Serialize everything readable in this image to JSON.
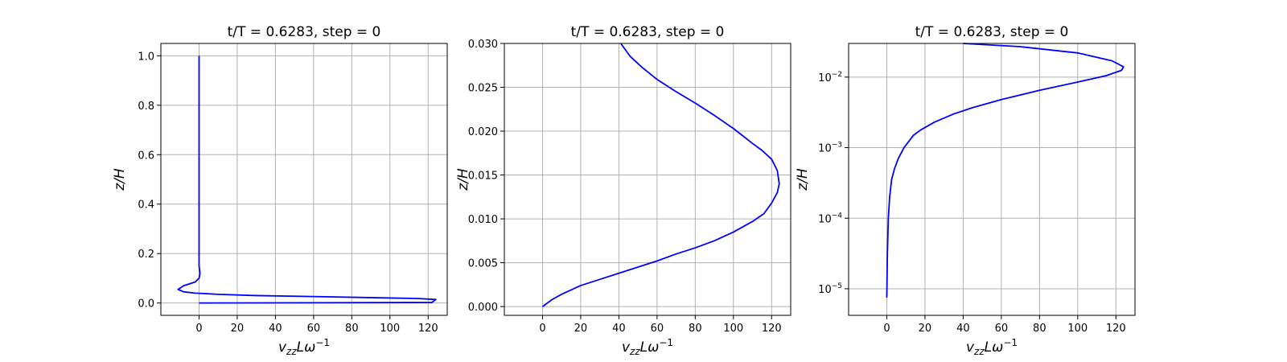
{
  "chart_data": [
    {
      "type": "line",
      "title": "t/T = 0.6283, step = 0",
      "xlabel": {
        "base": "v",
        "sub": "zz",
        "mid": "Lω",
        "sup": "−1"
      },
      "ylabel": "z/H",
      "xlim": [
        -20,
        130
      ],
      "ylim": [
        -0.05,
        1.05
      ],
      "yscale": "linear",
      "grid": true,
      "color": "#0000ff",
      "xticks": [
        0,
        20,
        40,
        60,
        80,
        100,
        120
      ],
      "xtick_labels": [
        "0",
        "20",
        "40",
        "60",
        "80",
        "100",
        "120"
      ],
      "yticks": [
        0.0,
        0.2,
        0.4,
        0.6,
        0.8,
        1.0
      ],
      "ytick_labels": [
        "0.0",
        "0.2",
        "0.4",
        "0.6",
        "0.8",
        "1.0"
      ],
      "points": [
        [
          0,
          0.0
        ],
        [
          122,
          0.002
        ],
        [
          124,
          0.014
        ],
        [
          115,
          0.018
        ],
        [
          95,
          0.021
        ],
        [
          60,
          0.026
        ],
        [
          30,
          0.03
        ],
        [
          10,
          0.035
        ],
        [
          -2,
          0.04
        ],
        [
          -8,
          0.045
        ],
        [
          -11,
          0.055
        ],
        [
          -8,
          0.07
        ],
        [
          -2,
          0.085
        ],
        [
          0,
          0.1
        ],
        [
          0.5,
          0.12
        ],
        [
          0,
          0.15
        ],
        [
          0,
          0.3
        ],
        [
          0,
          0.6
        ],
        [
          0,
          1.0
        ]
      ]
    },
    {
      "type": "line",
      "title": "t/T = 0.6283, step = 0",
      "xlabel": {
        "base": "v",
        "sub": "zz",
        "mid": "Lω",
        "sup": "−1"
      },
      "ylabel": "z/H",
      "xlim": [
        -20,
        130
      ],
      "ylim": [
        -0.001,
        0.03
      ],
      "yscale": "linear",
      "grid": true,
      "color": "#0000ff",
      "xticks": [
        0,
        20,
        40,
        60,
        80,
        100,
        120
      ],
      "xtick_labels": [
        "0",
        "20",
        "40",
        "60",
        "80",
        "100",
        "120"
      ],
      "yticks": [
        0.0,
        0.005,
        0.01,
        0.015,
        0.02,
        0.025,
        0.03
      ],
      "ytick_labels": [
        "0.000",
        "0.005",
        "0.010",
        "0.015",
        "0.020",
        "0.025",
        "0.030"
      ],
      "points": [
        [
          0,
          0.0
        ],
        [
          5,
          0.0008
        ],
        [
          10,
          0.0014
        ],
        [
          20,
          0.0024
        ],
        [
          30,
          0.0031
        ],
        [
          40,
          0.0038
        ],
        [
          50,
          0.0045
        ],
        [
          60,
          0.0052
        ],
        [
          70,
          0.006
        ],
        [
          80,
          0.0067
        ],
        [
          90,
          0.0075
        ],
        [
          100,
          0.0085
        ],
        [
          110,
          0.0097
        ],
        [
          116,
          0.0106
        ],
        [
          120,
          0.0118
        ],
        [
          123,
          0.013
        ],
        [
          124,
          0.014
        ],
        [
          123,
          0.0155
        ],
        [
          120,
          0.0168
        ],
        [
          115,
          0.0178
        ],
        [
          110,
          0.0186
        ],
        [
          100,
          0.0203
        ],
        [
          90,
          0.0218
        ],
        [
          80,
          0.0232
        ],
        [
          70,
          0.0245
        ],
        [
          60,
          0.0259
        ],
        [
          52,
          0.0273
        ],
        [
          46,
          0.0285
        ],
        [
          41,
          0.03
        ]
      ]
    },
    {
      "type": "line",
      "title": "t/T = 0.6283, step = 0",
      "xlabel": {
        "base": "v",
        "sub": "zz",
        "mid": "Lω",
        "sup": "−1"
      },
      "ylabel": "z/H",
      "xlim": [
        -20,
        130
      ],
      "ylim": [
        4.2e-06,
        0.03
      ],
      "yscale": "log",
      "grid": true,
      "color": "#0000ff",
      "xticks": [
        0,
        20,
        40,
        60,
        80,
        100,
        120
      ],
      "xtick_labels": [
        "0",
        "20",
        "40",
        "60",
        "80",
        "100",
        "120"
      ],
      "yticks": [
        1e-05,
        0.0001,
        0.001,
        0.01
      ],
      "ytick_labels": [
        {
          "base": "10",
          "exp": "−5"
        },
        {
          "base": "10",
          "exp": "−4"
        },
        {
          "base": "10",
          "exp": "−3"
        },
        {
          "base": "10",
          "exp": "−2"
        }
      ],
      "points": [
        [
          0,
          7.5e-06
        ],
        [
          0.3,
          3e-05
        ],
        [
          0.8,
          0.0001
        ],
        [
          1.5,
          0.0002
        ],
        [
          2.5,
          0.00035
        ],
        [
          4,
          0.0005
        ],
        [
          6,
          0.0007
        ],
        [
          9,
          0.001
        ],
        [
          14,
          0.0015
        ],
        [
          18,
          0.0018
        ],
        [
          25,
          0.0023
        ],
        [
          35,
          0.003
        ],
        [
          45,
          0.0037
        ],
        [
          60,
          0.0048
        ],
        [
          80,
          0.0065
        ],
        [
          100,
          0.0085
        ],
        [
          115,
          0.0105
        ],
        [
          123,
          0.0125
        ],
        [
          124,
          0.014
        ],
        [
          118,
          0.017
        ],
        [
          100,
          0.022
        ],
        [
          70,
          0.027
        ],
        [
          40,
          0.03
        ]
      ]
    }
  ]
}
